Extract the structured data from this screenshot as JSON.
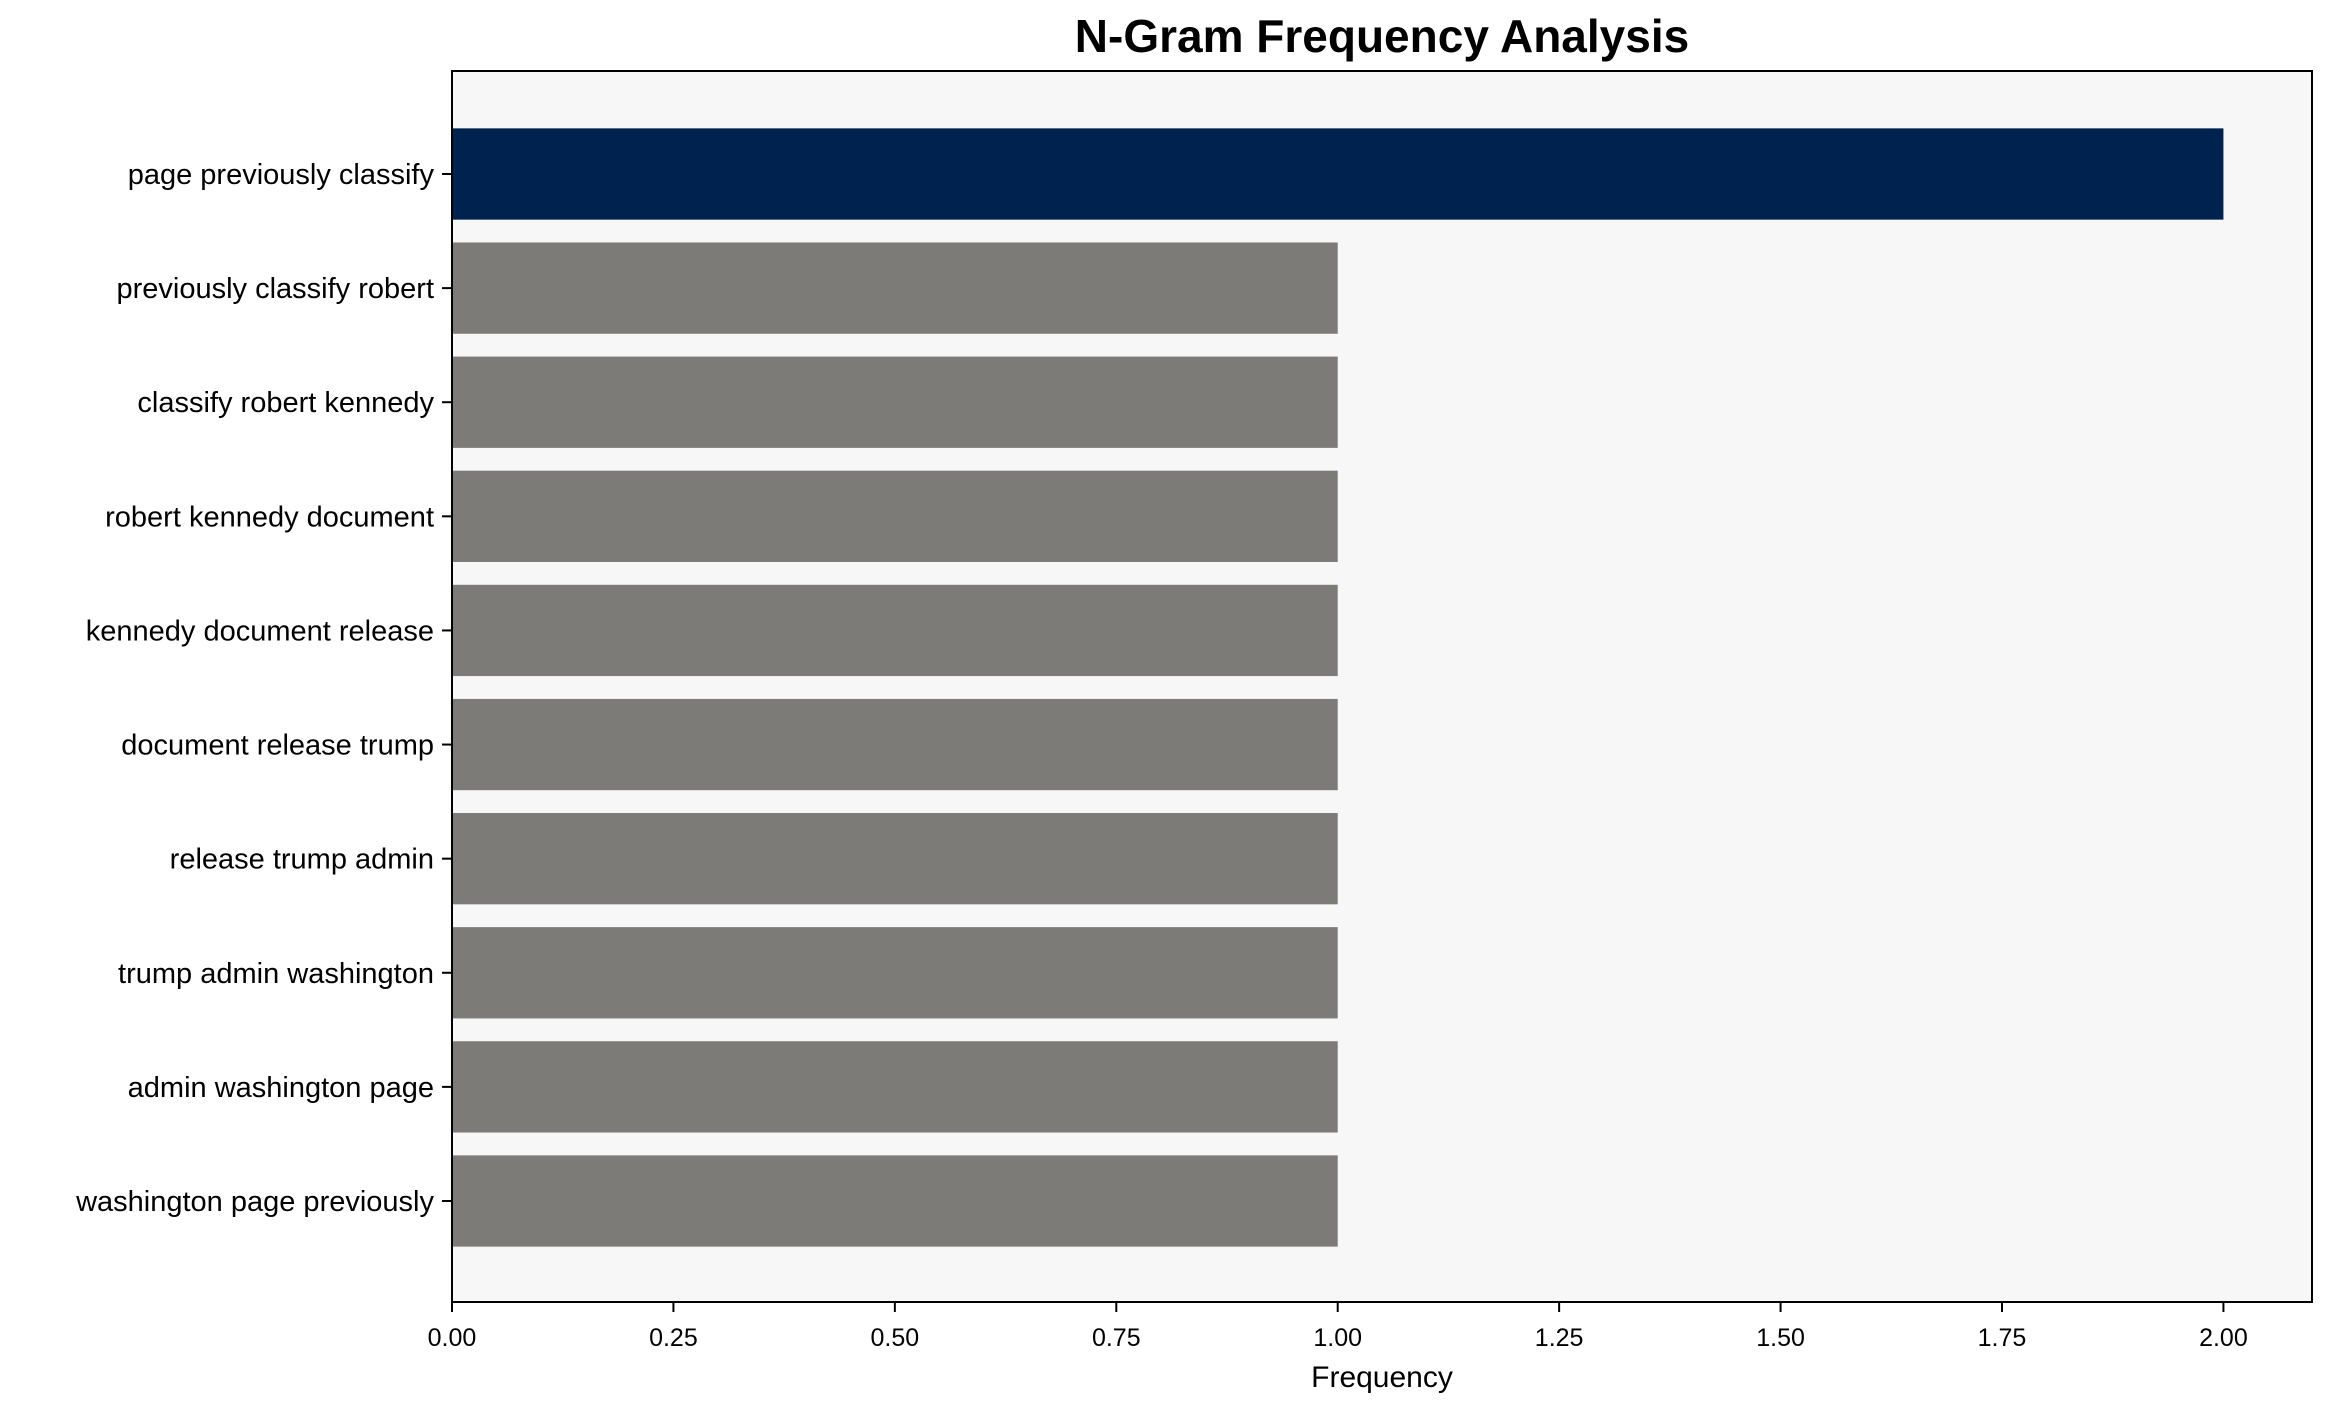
{
  "chart_data": {
    "type": "bar",
    "orientation": "horizontal",
    "title": "N-Gram Frequency Analysis",
    "xlabel": "Frequency",
    "ylabel": "",
    "categories": [
      "page previously classify",
      "previously classify robert",
      "classify robert kennedy",
      "robert kennedy document",
      "kennedy document release",
      "document release trump",
      "release trump admin",
      "trump admin washington",
      "admin washington page",
      "washington page previously"
    ],
    "values": [
      2,
      1,
      1,
      1,
      1,
      1,
      1,
      1,
      1,
      1
    ],
    "xlim": [
      0,
      2.1
    ],
    "xticks": [
      "0.00",
      "0.25",
      "0.50",
      "0.75",
      "1.00",
      "1.25",
      "1.50",
      "1.75",
      "2.00"
    ],
    "grid": false,
    "legend": "none",
    "colors": {
      "highlight": "#00224e",
      "default": "#7c7b78",
      "plot_background": "#f7f7f7"
    }
  }
}
